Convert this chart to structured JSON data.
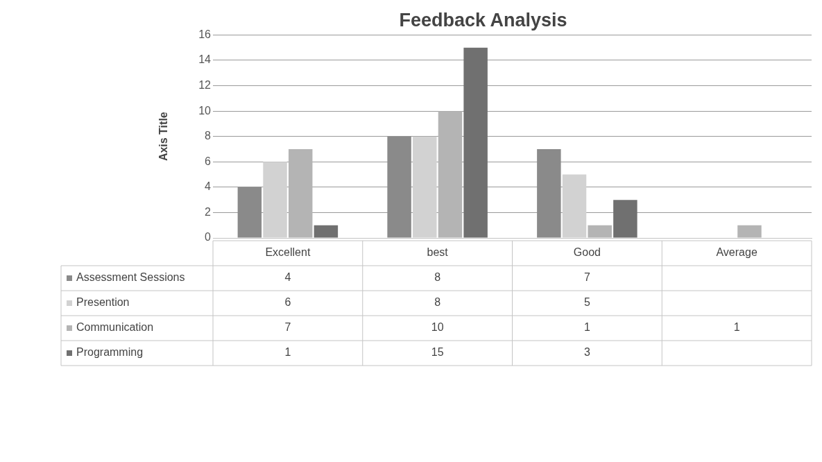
{
  "chart_data": {
    "type": "bar",
    "title": "Feedback Analysis",
    "ylabel": "Axis Title",
    "categories": [
      "Excellent",
      "best",
      "Good",
      "Average"
    ],
    "series": [
      {
        "name": "Assessment Sessions",
        "color": "#8a8a8a",
        "values": [
          4,
          8,
          7,
          null
        ]
      },
      {
        "name": "Presention",
        "color": "#d2d2d2",
        "values": [
          6,
          8,
          5,
          null
        ]
      },
      {
        "name": "Communication",
        "color": "#b4b4b4",
        "values": [
          7,
          10,
          1,
          1
        ]
      },
      {
        "name": "Programming",
        "color": "#707070",
        "values": [
          1,
          15,
          3,
          null
        ]
      }
    ],
    "ylim": [
      0,
      16
    ],
    "yticks": [
      0,
      2,
      4,
      6,
      8,
      10,
      12,
      14,
      16
    ],
    "grid": "y",
    "legend": "bottom",
    "data_labels": true
  }
}
